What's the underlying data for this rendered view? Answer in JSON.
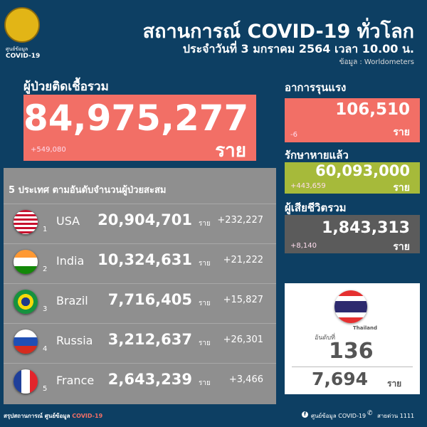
{
  "header": {
    "seal_text": "ศูนย์ข้อมูล",
    "seal_sub": "COVID-19",
    "title": "สถานการณ์ COVID-19 ทั่วโลก",
    "subtitle": "ประจำวันที่ 3 มกราคม 2564 เวลา 10.00 น.",
    "source": "ข้อมูล : Worldometers"
  },
  "total": {
    "label": "ผู้ป่วยติดเชื้อรวม",
    "value": "84,975,277",
    "unit": "ราย",
    "delta": "+549,080",
    "color": "#f26f66"
  },
  "severe": {
    "label": "อาการรุนแรง",
    "value": "106,510",
    "unit": "ราย",
    "delta": "-6",
    "color": "#f26f66"
  },
  "recovered": {
    "label": "รักษาหายแล้ว",
    "value": "60,093,000",
    "unit": "ราย",
    "delta": "+443,659",
    "color": "#a6ba3a"
  },
  "deaths": {
    "label": "ผู้เสียชีวิตรวม",
    "value": "1,843,313",
    "unit": "ราย",
    "delta": "+8,140",
    "color": "#5b5b5b"
  },
  "top5": {
    "title": "5 ประเทศ ตามอันดับจำนวนผู้ป่วยสะสม",
    "unit": "ราย",
    "rows": [
      {
        "rank": "1",
        "country": "USA",
        "cases": "20,904,701",
        "delta": "+232,227",
        "flag": "usa-flag"
      },
      {
        "rank": "2",
        "country": "India",
        "cases": "10,324,631",
        "delta": "+21,222",
        "flag": "india-flag"
      },
      {
        "rank": "3",
        "country": "Brazil",
        "cases": "7,716,405",
        "delta": "+15,827",
        "flag": "brazil-flag"
      },
      {
        "rank": "4",
        "country": "Russia",
        "cases": "3,212,637",
        "delta": "+26,301",
        "flag": "russia-flag"
      },
      {
        "rank": "5",
        "country": "France",
        "cases": "2,643,239",
        "delta": "+3,466",
        "flag": "france-flag"
      }
    ]
  },
  "thailand": {
    "country": "Thailand",
    "rank_label": "อันดับที่",
    "rank": "136",
    "cases": "7,694",
    "unit": "ราย"
  },
  "footer": {
    "left": "สรุปสถานการณ์ ศูนย์ข้อมูล",
    "left_highlight": "COVID-19",
    "facebook": "ศูนย์ข้อมูล COVID-19",
    "hotline": "สายด่วน 1111"
  }
}
